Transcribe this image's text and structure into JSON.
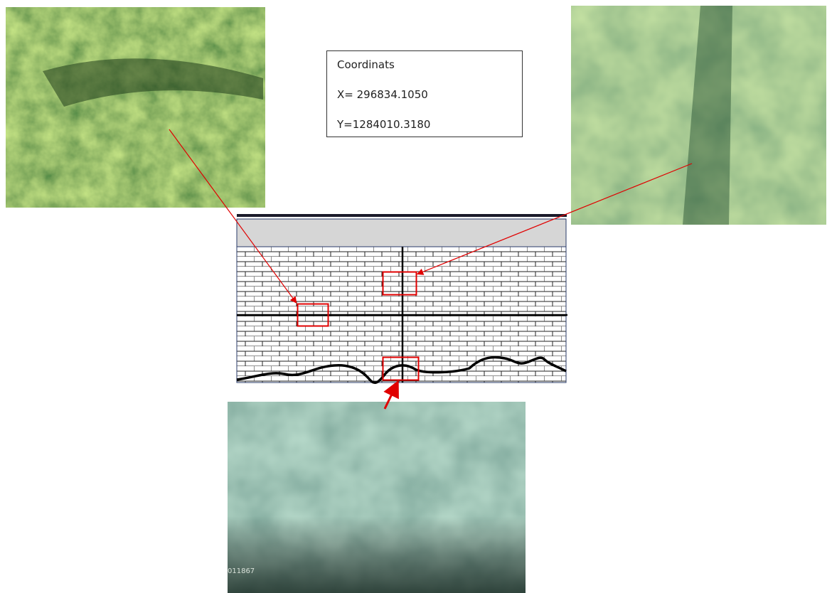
{
  "coordinates_box": {
    "title": "Coordinats",
    "x_line": "X= 296834.1050",
    "y_line": "Y=1284010.3180"
  },
  "bottom_photo": {
    "stamp": "011867"
  }
}
